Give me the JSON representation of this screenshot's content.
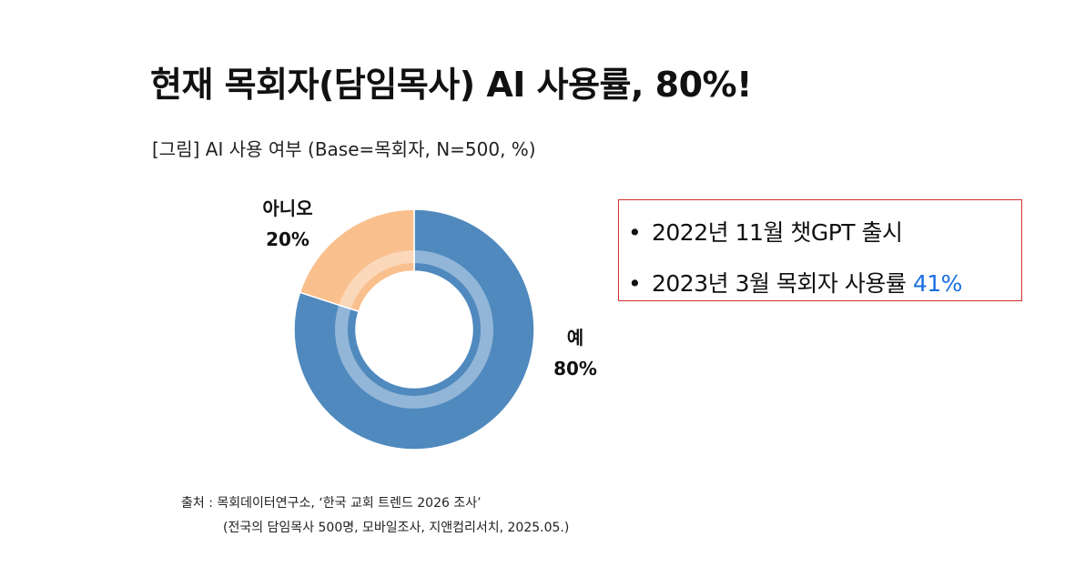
{
  "header": {
    "title": "현재 목회자(담임목사) AI 사용률, 80%!"
  },
  "chart_data": {
    "type": "pie",
    "subtitle": "[그림] AI 사용 여부 (Base=목회자, N=500, %)",
    "slices": [
      {
        "label": "예",
        "value": 80,
        "value_label": "80%",
        "color": "#4f89be"
      },
      {
        "label": "아니오",
        "value": 20,
        "value_label": "20%",
        "color": "#f9c08e"
      }
    ],
    "style": "donut"
  },
  "info_box": {
    "items": [
      {
        "bullet": "•",
        "text": "2022년 11월 챗GPT  출시",
        "highlight": ""
      },
      {
        "bullet": "•",
        "text": "2023년 3월 목회자 사용률 ",
        "highlight": "41%"
      }
    ],
    "border_color": "#d62f2f",
    "highlight_color": "#1a6fe0"
  },
  "source": {
    "line1": "출처 : 목회데이터연구소, ‘한국 교회 트렌드 2026 조사’",
    "line2": "(전국의 담임목사 500명, 모바일조사, 지앤컴리서치, 2025.05.)"
  }
}
